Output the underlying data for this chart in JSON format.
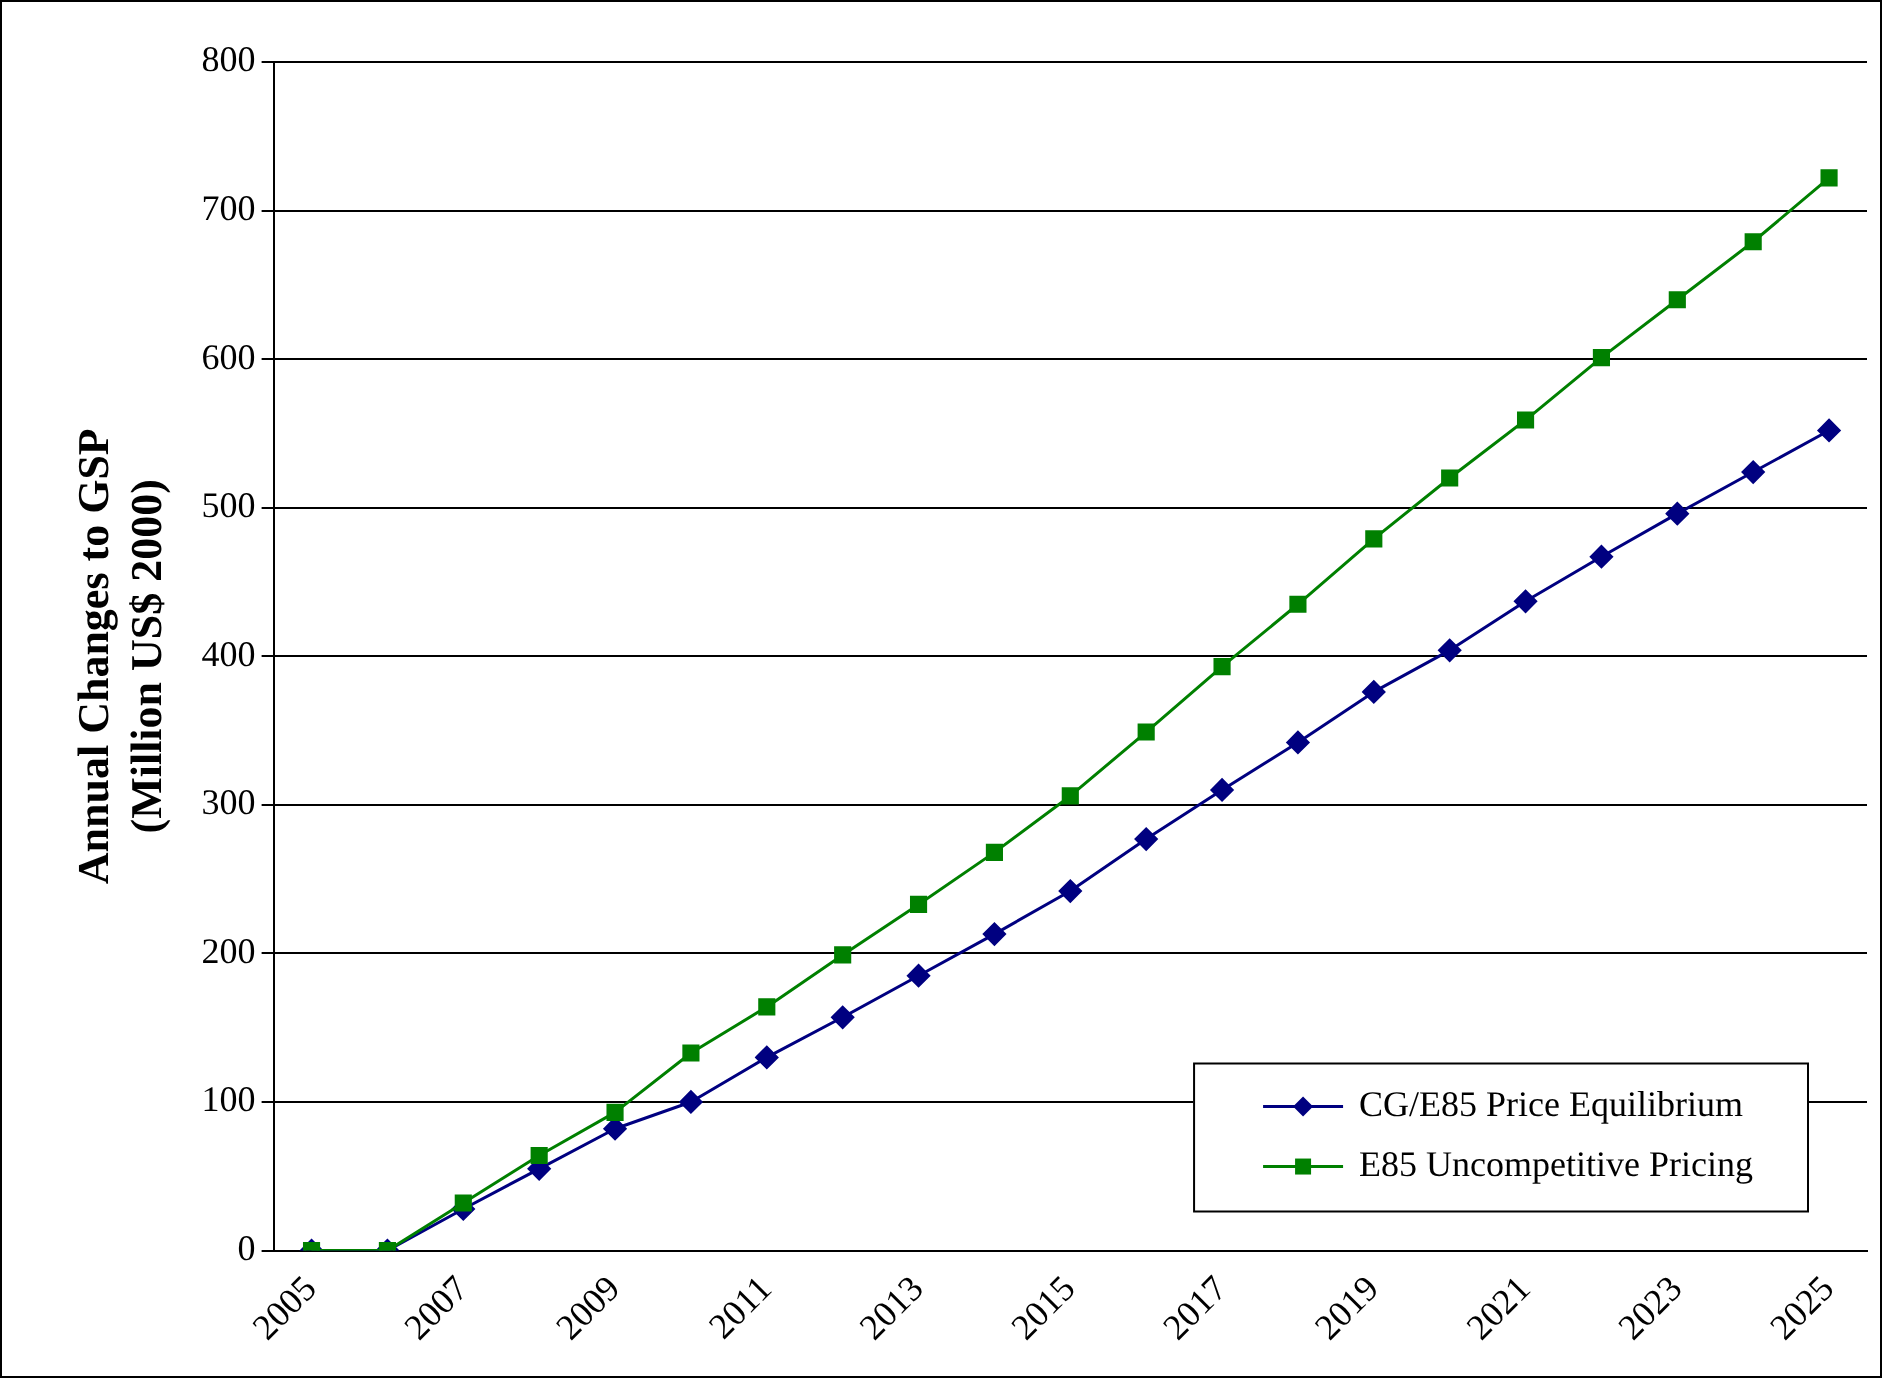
{
  "chart_data": {
    "type": "line",
    "ylabel": "Annual Changes to GSP\n(Million US$ 2000)",
    "categories": [
      "2005",
      null,
      "2007",
      null,
      "2009",
      null,
      "2011",
      null,
      "2013",
      null,
      "2015",
      null,
      "2017",
      null,
      "2019",
      null,
      "2021",
      null,
      "2023",
      null,
      "2025"
    ],
    "series": [
      {
        "name": "CG/E85 Price Equilibrium",
        "color": "#000080",
        "marker": "diamond",
        "values": [
          0,
          0,
          28,
          55,
          82,
          100,
          130,
          157,
          185,
          213,
          242,
          277,
          310,
          342,
          376,
          404,
          437,
          467,
          496,
          524,
          552
        ]
      },
      {
        "name": "E85 Uncompetitive Pricing",
        "color": "#008000",
        "marker": "square",
        "values": [
          0,
          0,
          32,
          64,
          93,
          133,
          164,
          199,
          233,
          268,
          306,
          349,
          393,
          435,
          479,
          520,
          559,
          601,
          640,
          679,
          722
        ]
      }
    ],
    "ylim": [
      0,
      800
    ],
    "yticks": [
      0,
      100,
      200,
      300,
      400,
      500,
      600,
      700,
      800
    ],
    "grid": "y",
    "legend": "bottom right",
    "line_style": "solid"
  }
}
